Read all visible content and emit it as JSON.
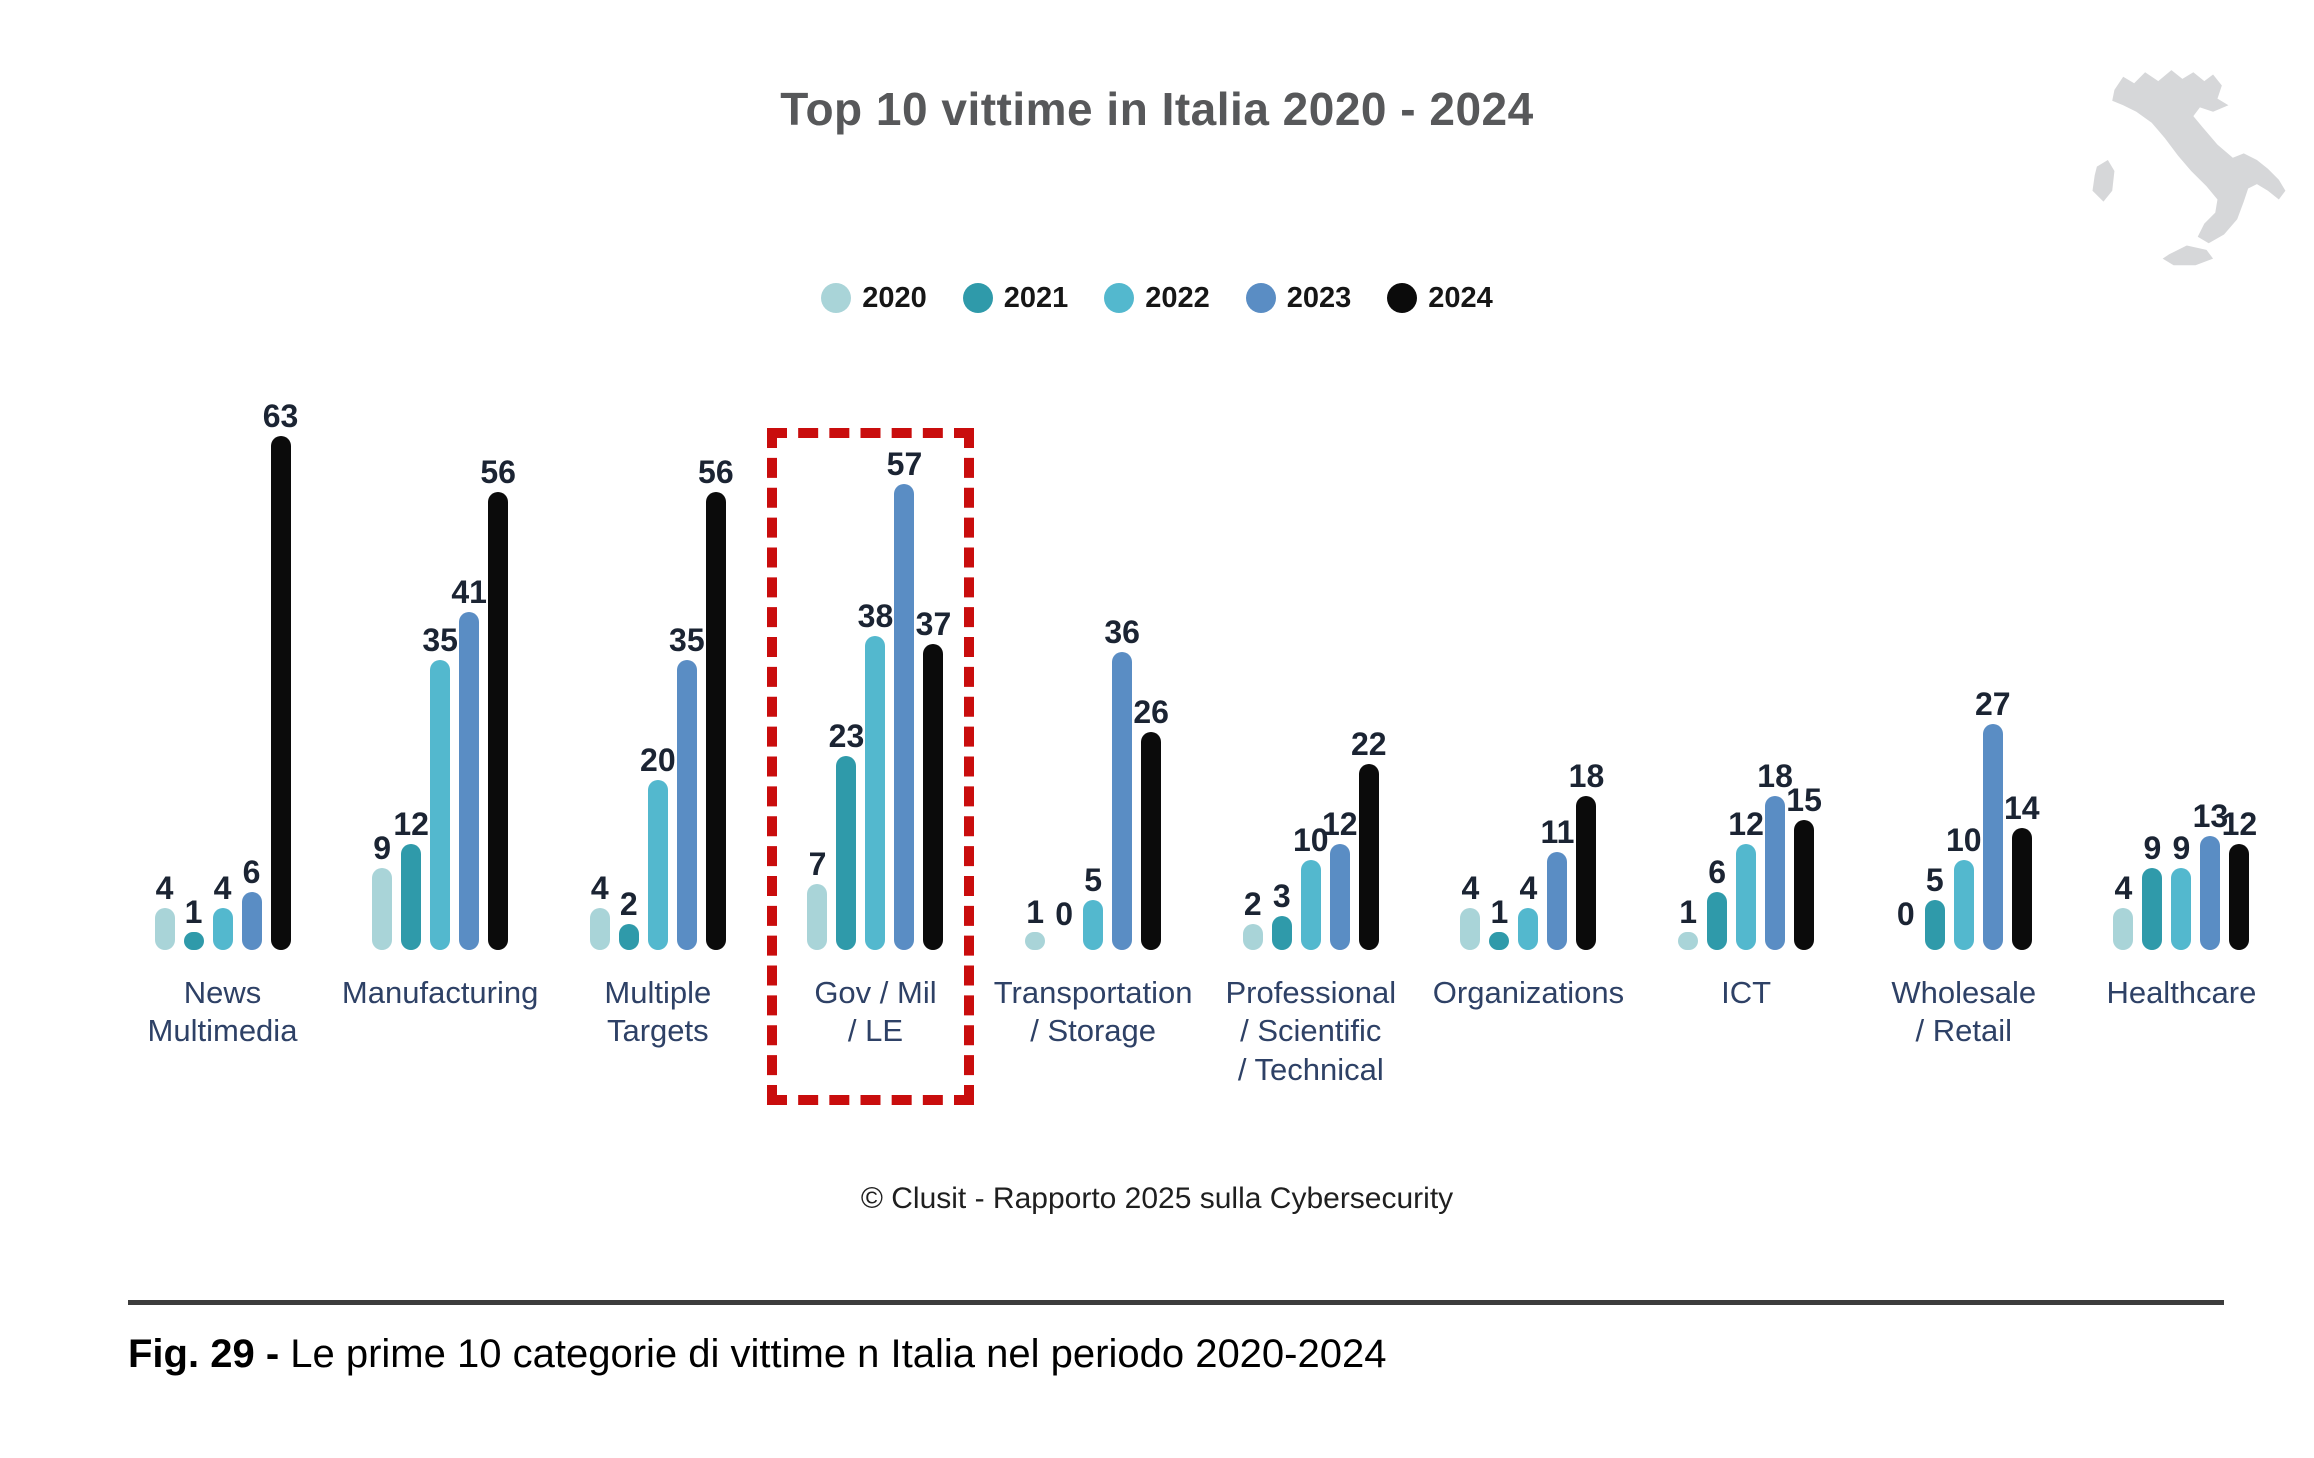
{
  "title": "Top 10 vittime in Italia 2020 - 2024",
  "credit": "© Clusit - Rapporto 2025 sulla Cybersecurity",
  "figure_caption": {
    "bold": "Fig. 29 - ",
    "text": "Le prime 10 categorie di vittime n Italia nel periodo 2020-2024"
  },
  "colors": {
    "title_gray": "#57585a",
    "value_label": "#1b2433",
    "category_label": "#2e4166",
    "highlight_red": "#c90d0d",
    "map_gray": "#d6d7d9"
  },
  "icons": {
    "map": "italy-silhouette-icon"
  },
  "chart_data": {
    "type": "bar",
    "title": "Top 10 vittime in Italia 2020 - 2024",
    "xlabel": "",
    "ylabel": "",
    "ylim": [
      0,
      63
    ],
    "grid": false,
    "legend_position": "top",
    "value_labels": true,
    "highlight_index": 3,
    "highlighted_category": "Gov / Mil / LE",
    "categories": [
      "News\nMultimedia",
      "Manufacturing",
      "Multiple\nTargets",
      "Gov / Mil\n/ LE",
      "Transportation\n/ Storage",
      "Professional\n/ Scientific\n/ Technical",
      "Organizations",
      "ICT",
      "Wholesale\n/ Retail",
      "Healthcare"
    ],
    "series": [
      {
        "name": "2020",
        "color": "#a9d4d8",
        "values": [
          4,
          9,
          4,
          7,
          1,
          2,
          4,
          1,
          0,
          4
        ]
      },
      {
        "name": "2021",
        "color": "#2f9aaa",
        "values": [
          1,
          12,
          2,
          23,
          0,
          3,
          1,
          6,
          5,
          9
        ]
      },
      {
        "name": "2022",
        "color": "#53b8ce",
        "values": [
          4,
          35,
          20,
          38,
          5,
          10,
          4,
          12,
          10,
          9
        ]
      },
      {
        "name": "2023",
        "color": "#5a8dc4",
        "values": [
          6,
          41,
          35,
          57,
          36,
          12,
          11,
          18,
          27,
          13
        ]
      },
      {
        "name": "2024",
        "color": "#0b0b0b",
        "values": [
          63,
          56,
          56,
          37,
          26,
          22,
          18,
          15,
          14,
          12
        ]
      }
    ]
  }
}
